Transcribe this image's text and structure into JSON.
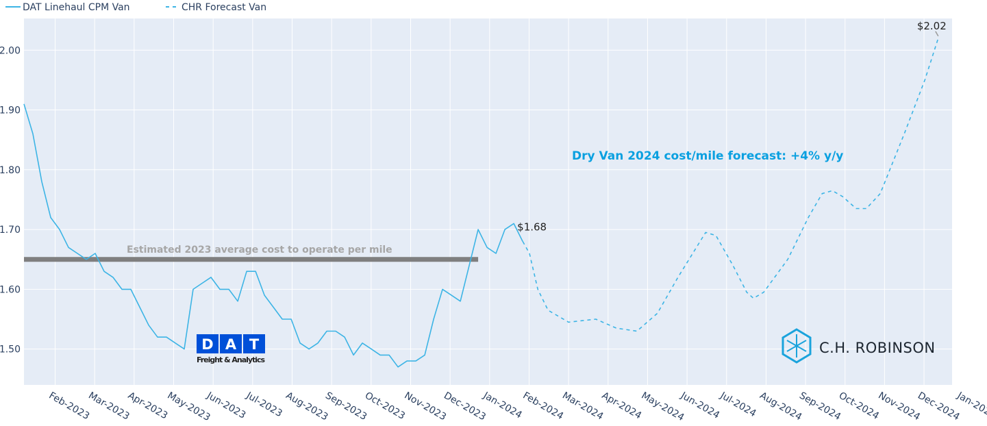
{
  "chart_data": {
    "type": "line",
    "title": "",
    "xlabel": "",
    "ylabel": "",
    "x_unit": "months since Jan-2023",
    "xlim": [
      0.21,
      23.71
    ],
    "ylim": [
      1.44,
      2.053
    ],
    "grid": true,
    "legend": {
      "placement": "top-left",
      "entries": [
        "DAT Linehaul CPM Van",
        "CHR Forecast Van"
      ]
    },
    "x_ticks": [
      {
        "x": 1,
        "label": "Feb-2023"
      },
      {
        "x": 2,
        "label": "Mar-2023"
      },
      {
        "x": 3,
        "label": "Apr-2023"
      },
      {
        "x": 4,
        "label": "May-2023"
      },
      {
        "x": 5,
        "label": "Jun-2023"
      },
      {
        "x": 6,
        "label": "Jul-2023"
      },
      {
        "x": 7,
        "label": "Aug-2023"
      },
      {
        "x": 8,
        "label": "Sep-2023"
      },
      {
        "x": 9,
        "label": "Oct-2023"
      },
      {
        "x": 10,
        "label": "Nov-2023"
      },
      {
        "x": 11,
        "label": "Dec-2023"
      },
      {
        "x": 12,
        "label": "Jan-2024"
      },
      {
        "x": 13,
        "label": "Feb-2024"
      },
      {
        "x": 14,
        "label": "Mar-2024"
      },
      {
        "x": 15,
        "label": "Apr-2024"
      },
      {
        "x": 16,
        "label": "May-2024"
      },
      {
        "x": 17,
        "label": "Jun-2024"
      },
      {
        "x": 18,
        "label": "Jul-2024"
      },
      {
        "x": 19,
        "label": "Aug-2024"
      },
      {
        "x": 20,
        "label": "Sep-2024"
      },
      {
        "x": 21,
        "label": "Oct-2024"
      },
      {
        "x": 22,
        "label": "Nov-2024"
      },
      {
        "x": 23,
        "label": "Dec-2024"
      },
      {
        "x": 24,
        "label": "Jan-2025"
      }
    ],
    "y_ticks": [
      {
        "y": 1.5,
        "label": "1.50"
      },
      {
        "y": 1.6,
        "label": "1.60"
      },
      {
        "y": 1.7,
        "label": "1.70"
      },
      {
        "y": 1.8,
        "label": "1.80"
      },
      {
        "y": 1.9,
        "label": "1.90"
      },
      {
        "y": 2.0,
        "label": "2.00"
      }
    ],
    "series": [
      {
        "name": "DAT Linehaul CPM Van",
        "style": "solid",
        "color": "#3cb4e5",
        "x_start": 0.21,
        "x_step": 0.2255,
        "values": [
          1.91,
          1.86,
          1.78,
          1.72,
          1.7,
          1.67,
          1.66,
          1.65,
          1.66,
          1.63,
          1.62,
          1.6,
          1.6,
          1.57,
          1.54,
          1.52,
          1.52,
          1.51,
          1.5,
          1.6,
          1.61,
          1.62,
          1.6,
          1.6,
          1.58,
          1.63,
          1.63,
          1.59,
          1.57,
          1.55,
          1.55,
          1.51,
          1.5,
          1.51,
          1.53,
          1.53,
          1.52,
          1.49,
          1.51,
          1.5,
          1.49,
          1.49,
          1.47,
          1.48,
          1.48,
          1.49,
          1.55,
          1.6,
          1.59,
          1.58,
          1.64,
          1.7,
          1.67,
          1.66,
          1.7,
          1.71,
          1.68
        ]
      },
      {
        "name": "CHR Forecast Van",
        "style": "dashed",
        "color": "#3cb4e5",
        "x": [
          12.84,
          13.01,
          13.22,
          13.48,
          14.0,
          14.69,
          15.21,
          15.73,
          16.25,
          16.77,
          17.47,
          17.73,
          18.16,
          18.51,
          18.68,
          18.94,
          19.55,
          20.07,
          20.42,
          20.68,
          20.94,
          21.28,
          21.54,
          21.89,
          22.5,
          23.02,
          23.36
        ],
        "values": [
          1.68,
          1.66,
          1.6,
          1.565,
          1.545,
          1.55,
          1.535,
          1.53,
          1.56,
          1.62,
          1.695,
          1.69,
          1.64,
          1.595,
          1.585,
          1.595,
          1.65,
          1.72,
          1.76,
          1.765,
          1.755,
          1.735,
          1.735,
          1.76,
          1.86,
          1.95,
          2.02
        ]
      }
    ],
    "reference_line": {
      "y": 1.65,
      "x_range": [
        0.21,
        11.71
      ],
      "color": "#7f7f7f",
      "label": "Estimated 2023 average cost to operate per mile"
    },
    "annotations": [
      {
        "x": 12.7,
        "y": 1.71,
        "text": "$1.68"
      },
      {
        "x": 23.36,
        "y": 2.02,
        "text": "$2.02"
      },
      {
        "text": "Dry Van 2024 cost/mile forecast: +4% y/y",
        "color": "#0aa0e0"
      }
    ]
  },
  "logos": {
    "dat": {
      "letters": [
        "D",
        "A",
        "T"
      ],
      "tagline": "Freight & Analytics",
      "color": "#0050d8"
    },
    "chr": {
      "name": "C.H. ROBINSON",
      "color": "#1aa3dc"
    }
  }
}
